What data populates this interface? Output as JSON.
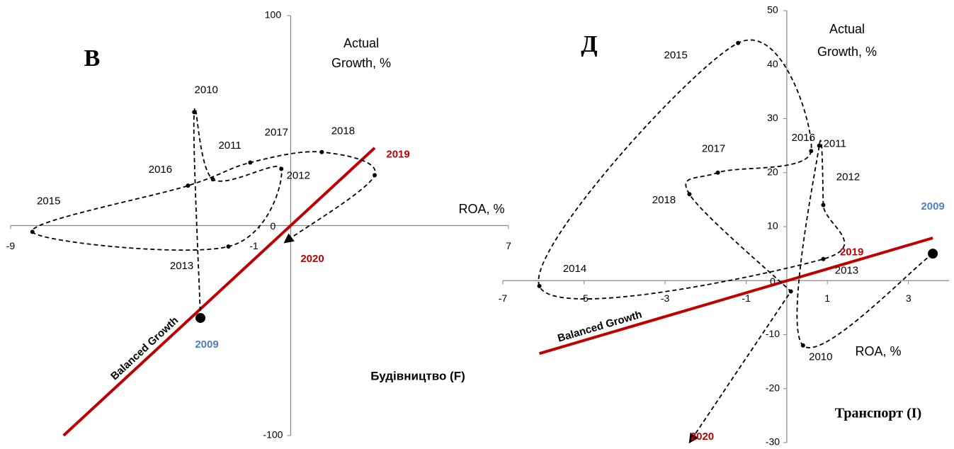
{
  "chart_data": [
    {
      "type": "line",
      "title": "В",
      "caption": "Будівництво (F)",
      "x_label": "ROA, %",
      "y_label": [
        "Actual",
        "Growth, %"
      ],
      "xlim": [
        -9,
        7
      ],
      "ylim": [
        -100,
        100
      ],
      "xticks": [
        -9,
        -1,
        7
      ],
      "yticks": [
        -100,
        0,
        100
      ],
      "points": {
        "labels": [
          "2009",
          "2010",
          "2011",
          "2012",
          "2013",
          "2015",
          "2016",
          "2017",
          "2018",
          "2019",
          "2020"
        ],
        "x": [
          -2.9,
          -3.1,
          -2.5,
          -0.3,
          -2.0,
          -8.3,
          -3.3,
          -1.3,
          1.0,
          2.7,
          -0.1
        ],
        "y": [
          -44,
          54,
          22,
          27,
          -10,
          -3,
          19,
          30,
          35,
          24,
          -7
        ],
        "label_colors": [
          "#4f81bd",
          "#000000",
          "#000000",
          "#000000",
          "#000000",
          "#000000",
          "#000000",
          "#000000",
          "#000000",
          "#c00000",
          "#c00000"
        ],
        "color": "#000000",
        "line_style": "dashed",
        "start_marker": "large-dot",
        "end_marker": "triangle"
      },
      "balanced": {
        "name": "Balanced Growth",
        "color": "#c00000",
        "x": [
          -7.3,
          2.7
        ],
        "y": [
          -100,
          37
        ]
      }
    },
    {
      "type": "line",
      "title": "Д",
      "caption": "Транспорт (І)",
      "x_label": "ROA, %",
      "y_label": [
        "Actual",
        "Growth, %"
      ],
      "xlim": [
        -7,
        4
      ],
      "ylim": [
        -30,
        50
      ],
      "xticks": [
        -7,
        -5,
        -3,
        -1,
        1,
        3
      ],
      "yticks": [
        -30,
        -20,
        -10,
        0,
        10,
        20,
        30,
        40,
        50
      ],
      "points": {
        "labels": [
          "2009",
          "2010",
          "2011",
          "2012",
          "2013",
          "2014",
          "2015",
          "2016",
          "2017",
          "2018",
          "2019",
          "2020"
        ],
        "x": [
          3.6,
          0.4,
          0.8,
          0.9,
          0.9,
          -6.1,
          -1.2,
          0.6,
          -1.7,
          -2.4,
          0.1,
          -2.4
        ],
        "y": [
          5,
          -12,
          25,
          14,
          4,
          -1,
          44,
          24,
          20,
          16,
          -2,
          -30
        ],
        "label_colors": [
          "#4f81bd",
          "#000000",
          "#000000",
          "#000000",
          "#000000",
          "#000000",
          "#000000",
          "#000000",
          "#000000",
          "#000000",
          "#c00000",
          "#c00000"
        ],
        "color": "#000000",
        "line_style": "dashed",
        "start_marker": "large-dot",
        "end_marker": "arrow"
      },
      "balanced": {
        "name": "Balanced Growth",
        "color": "#c00000",
        "x": [
          -6.1,
          3.6
        ],
        "y": [
          -13.5,
          7.9
        ]
      }
    }
  ]
}
